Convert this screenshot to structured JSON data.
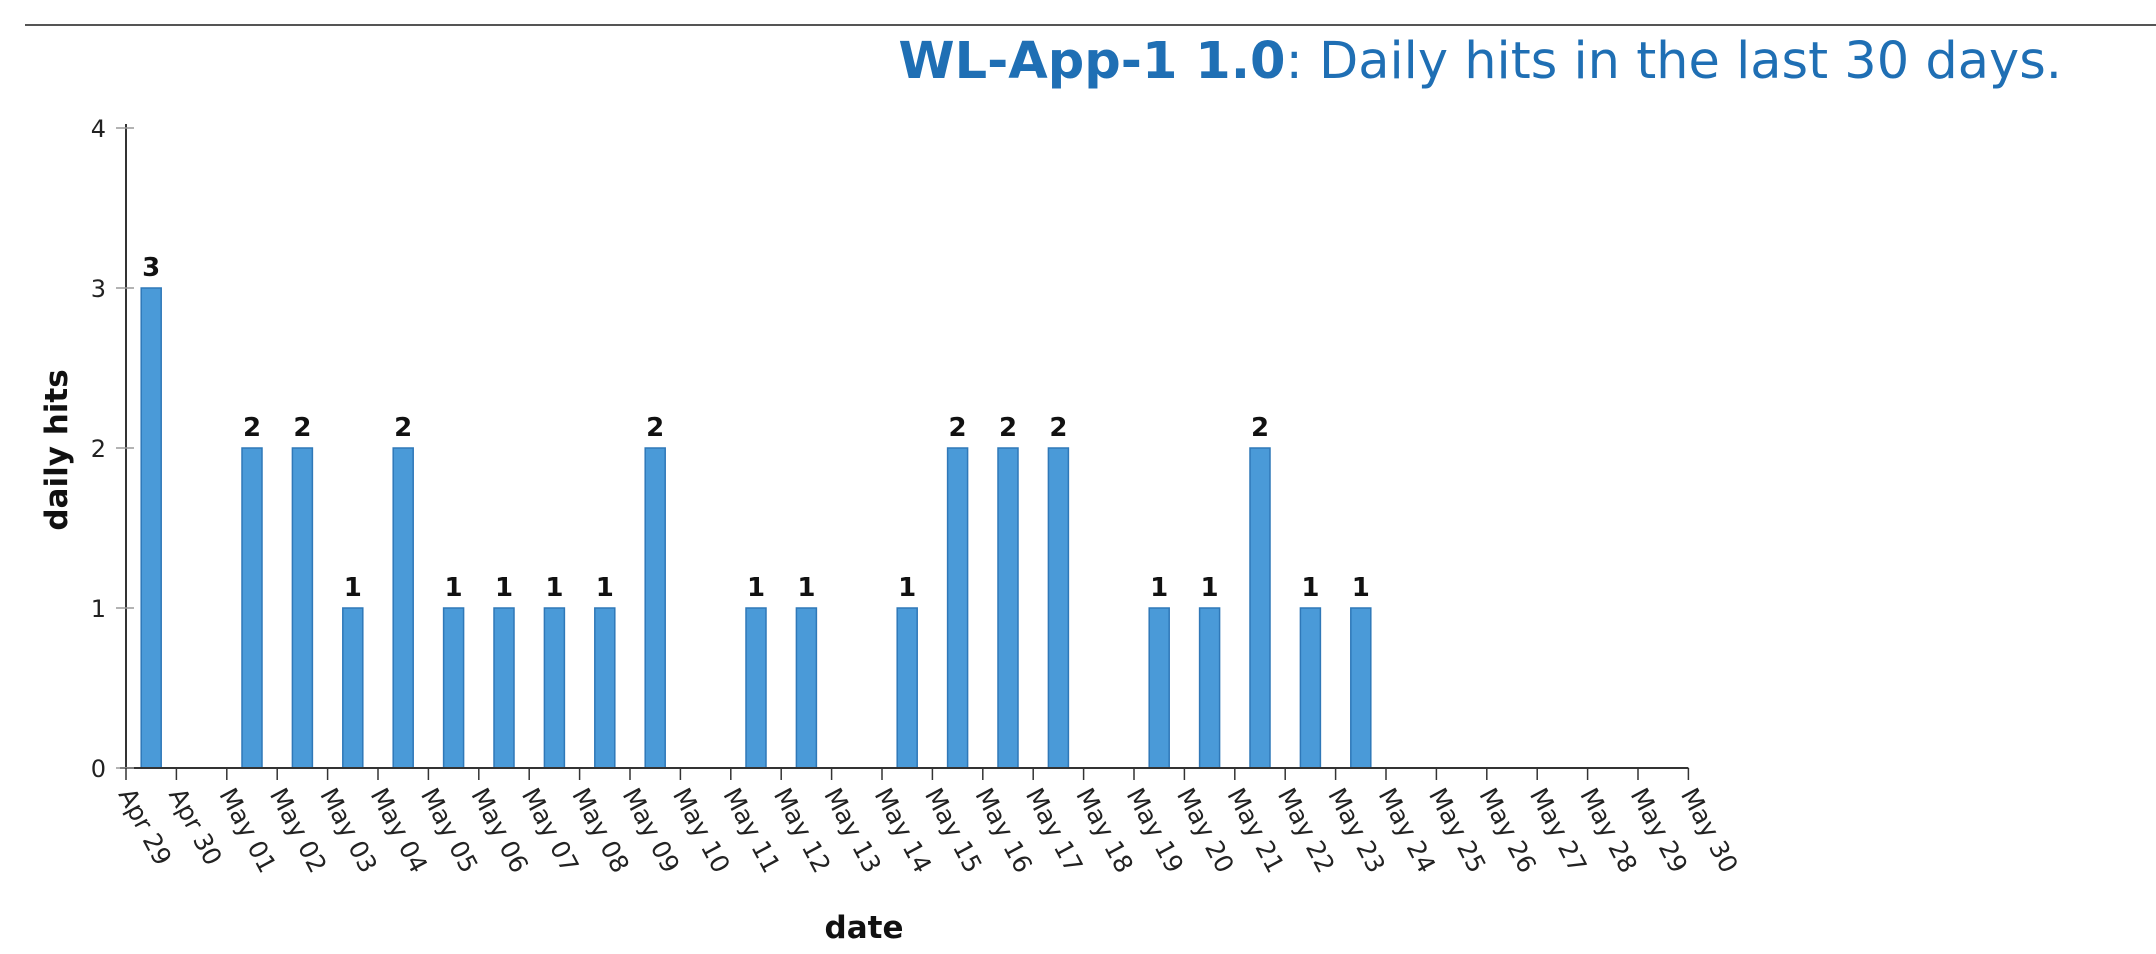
{
  "header": {
    "app_name": "WL-App-1 1.0",
    "title_suffix": ": Daily hits in the last 30 days."
  },
  "colors": {
    "bar": "#4a9ad8",
    "bar_edge": "#2f78b8",
    "title": "#1f6fb4",
    "axis": "#333333"
  },
  "chart_data": {
    "type": "bar",
    "title": "WL-App-1 1.0: Daily hits in the last 30 days.",
    "xlabel": "date",
    "ylabel": "daily hits",
    "ylim": [
      0,
      4
    ],
    "yticks": [
      0,
      1,
      2,
      3,
      4
    ],
    "grid": false,
    "categories": [
      "Apr 29",
      "Apr 30",
      "May 01",
      "May 02",
      "May 03",
      "May 04",
      "May 05",
      "May 06",
      "May 07",
      "May 08",
      "May 09",
      "May 10",
      "May 11",
      "May 12",
      "May 13",
      "May 14",
      "May 15",
      "May 16",
      "May 17",
      "May 18",
      "May 19",
      "May 20",
      "May 21",
      "May 22",
      "May 23",
      "May 24",
      "May 25",
      "May 26",
      "May 27",
      "May 28",
      "May 29",
      "May 30"
    ],
    "values": [
      3,
      0,
      2,
      2,
      1,
      2,
      1,
      1,
      1,
      1,
      2,
      0,
      1,
      1,
      0,
      1,
      2,
      2,
      2,
      0,
      1,
      1,
      2,
      1,
      1,
      0,
      0,
      0,
      0,
      0,
      0,
      0
    ]
  }
}
